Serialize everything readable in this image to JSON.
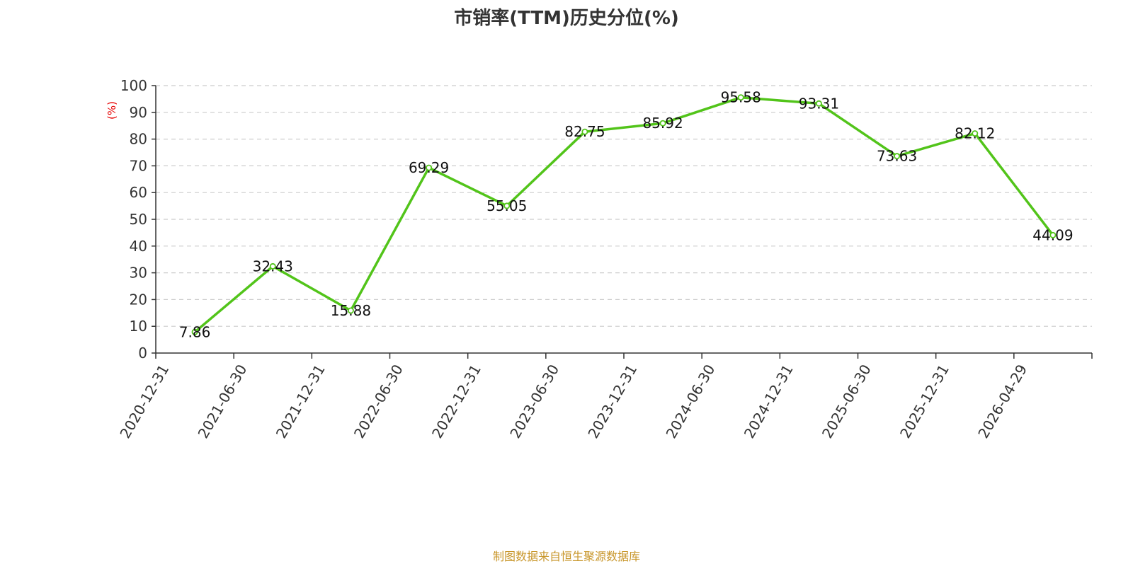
{
  "chart_data": {
    "type": "line",
    "title": "市销率(TTM)历史分位(%)",
    "ylabel": "(%)",
    "xlabel": "",
    "ylim": [
      0,
      100
    ],
    "yticks": [
      0,
      10,
      20,
      30,
      40,
      50,
      60,
      70,
      80,
      90,
      100
    ],
    "grid": "horizontal-dashed",
    "categories": [
      "2020-12-31",
      "2021-06-30",
      "2021-12-31",
      "2022-06-30",
      "2022-12-31",
      "2023-06-30",
      "2023-12-31",
      "2024-06-30",
      "2024-12-31",
      "2025-06-30",
      "2025-12-31",
      "2026-04-29"
    ],
    "series": [
      {
        "values": [
          7.86,
          32.43,
          15.88,
          69.29,
          55.05,
          82.75,
          85.92,
          95.58,
          93.31,
          73.63,
          82.12,
          44.09
        ],
        "labels": [
          "7.86",
          "32.43",
          "15.88",
          "69.29",
          "55.05",
          "82.75",
          "85.92",
          "95.58",
          "93.31",
          "73.63",
          "82.12",
          "44.09"
        ],
        "color": "#52c41a"
      }
    ]
  },
  "colors": {
    "line": "#52c41a",
    "ylabel": "#e60000",
    "footer": "#c8962a",
    "grid": "#cccccc",
    "axis": "#333333"
  },
  "footer": "制图数据来自恒生聚源数据库"
}
